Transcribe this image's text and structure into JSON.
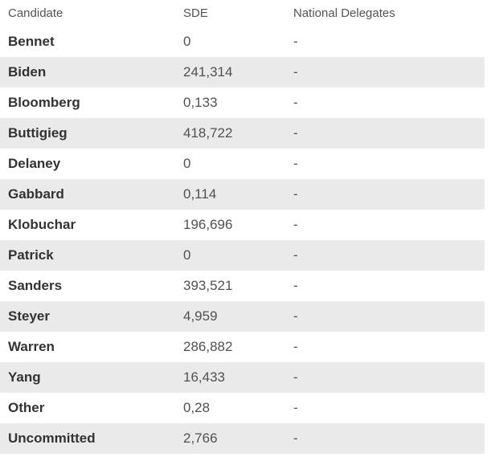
{
  "page": {
    "background_color": "#ffffff",
    "stripe_color": "#eaeaea",
    "header_text_color": "#545454",
    "candidate_text_color": "#333333",
    "value_text_color": "#515151"
  },
  "table": {
    "columns": [
      "Candidate",
      "SDE",
      "National Delegates"
    ],
    "rows": [
      {
        "candidate": "Bennet",
        "sde": "0",
        "national_delegates": "-"
      },
      {
        "candidate": "Biden",
        "sde": "241,314",
        "national_delegates": "-"
      },
      {
        "candidate": "Bloomberg",
        "sde": "0,133",
        "national_delegates": "-"
      },
      {
        "candidate": "Buttigieg",
        "sde": "418,722",
        "national_delegates": "-"
      },
      {
        "candidate": "Delaney",
        "sde": "0",
        "national_delegates": "-"
      },
      {
        "candidate": "Gabbard",
        "sde": "0,114",
        "national_delegates": "-"
      },
      {
        "candidate": "Klobuchar",
        "sde": "196,696",
        "national_delegates": "-"
      },
      {
        "candidate": "Patrick",
        "sde": "0",
        "national_delegates": "-"
      },
      {
        "candidate": "Sanders",
        "sde": "393,521",
        "national_delegates": "-"
      },
      {
        "candidate": "Steyer",
        "sde": "4,959",
        "national_delegates": "-"
      },
      {
        "candidate": "Warren",
        "sde": "286,882",
        "national_delegates": "-"
      },
      {
        "candidate": "Yang",
        "sde": "16,433",
        "national_delegates": "-"
      },
      {
        "candidate": "Other",
        "sde": "0,28",
        "national_delegates": "-"
      },
      {
        "candidate": "Uncommitted",
        "sde": "2,766",
        "national_delegates": "-"
      }
    ]
  },
  "chart_data": {
    "type": "table",
    "columns": [
      "Candidate",
      "SDE",
      "National Delegates"
    ],
    "rows": [
      [
        "Bennet",
        "0",
        "-"
      ],
      [
        "Biden",
        "241,314",
        "-"
      ],
      [
        "Bloomberg",
        "0,133",
        "-"
      ],
      [
        "Buttigieg",
        "418,722",
        "-"
      ],
      [
        "Delaney",
        "0",
        "-"
      ],
      [
        "Gabbard",
        "0,114",
        "-"
      ],
      [
        "Klobuchar",
        "196,696",
        "-"
      ],
      [
        "Patrick",
        "0",
        "-"
      ],
      [
        "Sanders",
        "393,521",
        "-"
      ],
      [
        "Steyer",
        "4,959",
        "-"
      ],
      [
        "Warren",
        "286,882",
        "-"
      ],
      [
        "Yang",
        "16,433",
        "-"
      ],
      [
        "Other",
        "0,28",
        "-"
      ],
      [
        "Uncommitted",
        "2,766",
        "-"
      ]
    ],
    "title": "",
    "layout_hints": {
      "striped": true,
      "stripe_start": "second-data-row",
      "grid": false
    }
  }
}
